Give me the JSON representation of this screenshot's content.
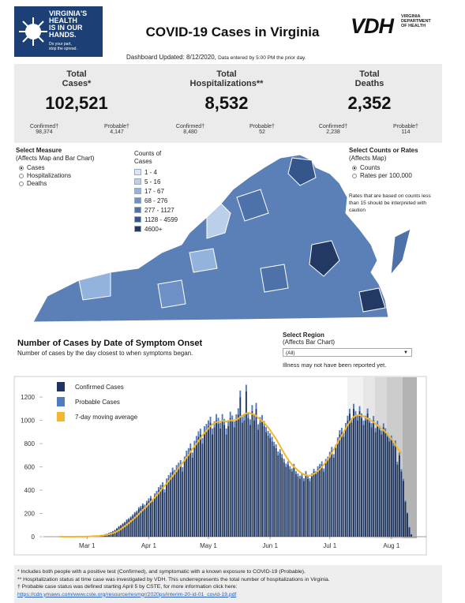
{
  "header": {
    "logo_lines": [
      "VIRGINIA'S",
      "HEALTH",
      "IS IN OUR",
      "HANDS."
    ],
    "logo_sub": [
      "Do your part,",
      "stop the spread."
    ],
    "title": "COVID-19 Cases in Virginia",
    "vdh": "VDH",
    "vdh_name": [
      "VIRGINIA",
      "DEPARTMENT",
      "OF HEALTH"
    ],
    "updated": "Dashboard Updated: 8/12/2020,",
    "updated_note": "Data entered by 5:00 PM the prior day."
  },
  "totals": [
    {
      "label": [
        "Total",
        "Cases*"
      ],
      "value": "102,521",
      "left_label": "Confirmed†",
      "left_value": "98,374",
      "right_label": "Probable†",
      "right_value": "4,147"
    },
    {
      "label": [
        "Total",
        "Hospitalizations**"
      ],
      "value": "8,532",
      "left_label": "Confirmed†",
      "left_value": "8,480",
      "right_label": "Probable†",
      "right_value": "52"
    },
    {
      "label": [
        "Total",
        "Deaths"
      ],
      "value": "2,352",
      "left_label": "Confirmed†",
      "left_value": "2,238",
      "right_label": "Probable†",
      "right_value": "114"
    }
  ],
  "map": {
    "measure_title": [
      "Select Measure",
      "(Affects Map and Bar Chart)"
    ],
    "measure_options": [
      "Cases",
      "Hospitalizations",
      "Deaths"
    ],
    "legend_title": [
      "Counts of",
      "Cases"
    ],
    "legend": [
      {
        "label": "1 - 4",
        "color": "#dde7f4"
      },
      {
        "label": "5 - 16",
        "color": "#bcd0ea"
      },
      {
        "label": "17 - 67",
        "color": "#93b2dc"
      },
      {
        "label": "68 - 276",
        "color": "#6d90c6"
      },
      {
        "label": "277 - 1127",
        "color": "#4d71a9"
      },
      {
        "label": "1128 - 4599",
        "color": "#34568b"
      },
      {
        "label": "4600+",
        "color": "#223a63"
      }
    ],
    "rates_title": [
      "Select Counts or Rates",
      "(Affects Map)"
    ],
    "rates_options": [
      "Counts",
      "Rates per 100,000"
    ],
    "rates_note": [
      "Rates that are based on counts less",
      "than 15 should be interpreted with",
      "caution"
    ]
  },
  "region": {
    "title": [
      "Select Region",
      "(Affects Bar Chart)"
    ],
    "selected": "(All)",
    "note": "Illness may not have been reported yet."
  },
  "chart_data": {
    "type": "bar",
    "title": "Number of Cases by Date of Symptom Onset",
    "subtitle": "Number of cases by the day closest to when symptoms began.",
    "categories": [
      null,
      null,
      null,
      null,
      null,
      null,
      null,
      null,
      null,
      null,
      null,
      null,
      null,
      null,
      "Mar 1",
      null,
      null,
      null,
      null,
      null,
      null,
      null,
      null,
      null,
      null,
      null,
      null,
      null,
      null,
      null,
      null,
      null,
      null,
      null,
      null,
      null,
      null,
      null,
      null,
      null,
      null,
      null,
      null,
      null,
      null,
      "Apr 1",
      null,
      null,
      null,
      null,
      null,
      null,
      null,
      null,
      null,
      null,
      null,
      null,
      null,
      null,
      null,
      null,
      null,
      null,
      null,
      null,
      null,
      null,
      null,
      null,
      null,
      null,
      null,
      null,
      null,
      "May 1",
      null,
      null,
      null,
      null,
      null,
      null,
      null,
      null,
      null,
      null,
      null,
      null,
      null,
      null,
      null,
      null,
      null,
      null,
      null,
      null,
      null,
      null,
      null,
      null,
      null,
      null,
      null,
      null,
      null,
      null,
      "Jun 1",
      null,
      null,
      null,
      null,
      null,
      null,
      null,
      null,
      null,
      null,
      null,
      null,
      null,
      null,
      null,
      null,
      null,
      null,
      null,
      null,
      null,
      null,
      null,
      null,
      null,
      null,
      null,
      null,
      null,
      "Jul 1",
      null,
      null,
      null,
      null,
      null,
      null,
      null,
      null,
      null,
      null,
      null,
      null,
      null,
      null,
      null,
      null,
      null,
      null,
      null,
      null,
      null,
      null,
      null,
      null,
      null,
      null,
      null,
      null,
      null,
      null,
      "Aug 1",
      null,
      null,
      null,
      null,
      null,
      null,
      null,
      null,
      null,
      null
    ],
    "series": [
      {
        "name": "Confirmed Cases",
        "color": "#1e3560",
        "values": [
          0,
          0,
          0,
          0,
          1,
          0,
          0,
          1,
          0,
          1,
          1,
          2,
          1,
          2,
          3,
          2,
          4,
          5,
          6,
          8,
          10,
          12,
          15,
          20,
          25,
          30,
          38,
          45,
          55,
          70,
          85,
          95,
          110,
          120,
          140,
          150,
          165,
          180,
          200,
          210,
          240,
          250,
          270,
          260,
          290,
          310,
          330,
          300,
          350,
          370,
          400,
          420,
          440,
          380,
          470,
          500,
          520,
          560,
          540,
          580,
          600,
          620,
          560,
          650,
          700,
          720,
          760,
          680,
          780,
          820,
          860,
          880,
          800,
          900,
          920,
          950,
          980,
          880,
          940,
          1000,
          970,
          930,
          1000,
          960,
          880,
          950,
          1020,
          990,
          940,
          1000,
          1050,
          1200,
          980,
          1000,
          1250,
          1020,
          960,
          1080,
          1000,
          1100,
          920,
          980,
          1000,
          950,
          900,
          870,
          850,
          820,
          780,
          760,
          700,
          720,
          680,
          640,
          600,
          620,
          580,
          560,
          600,
          540,
          520,
          500,
          520,
          480,
          540,
          500,
          480,
          520,
          560,
          540,
          580,
          600,
          620,
          560,
          640,
          660,
          700,
          740,
          680,
          760,
          820,
          880,
          900,
          860,
          940,
          1000,
          1060,
          980,
          1100,
          1040,
          1000,
          1080,
          1020,
          960,
          1000,
          1060,
          980,
          940,
          1000,
          900,
          960,
          920,
          880,
          940,
          900,
          860,
          820,
          840,
          780,
          800,
          620,
          700,
          560,
          480,
          300,
          200,
          80,
          20
        ]
      },
      {
        "name": "Probable Cases",
        "color": "#4f7cbf",
        "values": [
          0,
          0,
          0,
          0,
          0,
          0,
          0,
          0,
          0,
          0,
          0,
          0,
          0,
          0,
          0,
          0,
          0,
          0,
          0,
          0,
          1,
          1,
          1,
          2,
          2,
          3,
          3,
          4,
          5,
          5,
          6,
          6,
          7,
          8,
          9,
          10,
          10,
          12,
          12,
          14,
          14,
          15,
          16,
          16,
          18,
          20,
          20,
          22,
          22,
          24,
          26,
          26,
          28,
          28,
          30,
          30,
          32,
          34,
          34,
          36,
          36,
          38,
          38,
          40,
          40,
          42,
          42,
          44,
          44,
          46,
          46,
          48,
          48,
          50,
          50,
          50,
          52,
          50,
          52,
          54,
          52,
          50,
          54,
          52,
          50,
          52,
          54,
          52,
          50,
          52,
          54,
          56,
          50,
          52,
          56,
          50,
          48,
          52,
          50,
          50,
          46,
          48,
          46,
          44,
          42,
          40,
          40,
          38,
          36,
          34,
          32,
          32,
          30,
          30,
          28,
          28,
          26,
          26,
          26,
          24,
          24,
          24,
          24,
          22,
          24,
          24,
          22,
          24,
          24,
          24,
          26,
          26,
          28,
          26,
          28,
          28,
          30,
          32,
          30,
          32,
          34,
          36,
          36,
          34,
          38,
          40,
          40,
          38,
          42,
          40,
          40,
          42,
          40,
          38,
          40,
          42,
          38,
          36,
          38,
          34,
          36,
          34,
          32,
          34,
          32,
          30,
          30,
          30,
          28,
          28,
          24,
          24,
          20,
          18,
          12,
          8,
          4,
          2
        ]
      },
      {
        "name": "7-day moving average",
        "color": "#f2b630",
        "type": "line",
        "values": [
          0,
          0,
          0,
          0,
          0,
          0,
          0,
          0,
          0,
          1,
          1,
          1,
          1,
          1,
          2,
          2,
          3,
          4,
          5,
          6,
          7,
          9,
          11,
          14,
          17,
          20,
          25,
          30,
          37,
          45,
          55,
          65,
          78,
          90,
          103,
          117,
          132,
          147,
          162,
          178,
          195,
          213,
          230,
          245,
          262,
          280,
          300,
          318,
          336,
          356,
          376,
          398,
          420,
          438,
          456,
          478,
          500,
          522,
          544,
          566,
          590,
          612,
          634,
          656,
          680,
          704,
          730,
          754,
          776,
          800,
          822,
          846,
          870,
          890,
          910,
          930,
          950,
          965,
          975,
          985,
          990,
          990,
          995,
          995,
          990,
          995,
          1000,
          1000,
          1000,
          1005,
          1015,
          1030,
          1040,
          1050,
          1060,
          1065,
          1060,
          1055,
          1050,
          1040,
          1020,
          1010,
          995,
          980,
          960,
          940,
          915,
          890,
          865,
          840,
          810,
          780,
          750,
          720,
          690,
          665,
          640,
          620,
          600,
          585,
          570,
          555,
          545,
          535,
          530,
          525,
          525,
          530,
          540,
          550,
          565,
          580,
          600,
          620,
          640,
          665,
          690,
          720,
          750,
          780,
          810,
          840,
          870,
          900,
          930,
          960,
          985,
          1010,
          1030,
          1040,
          1045,
          1045,
          1040,
          1035,
          1025,
          1015,
          1005,
          995,
          985,
          970,
          955,
          945,
          930,
          915,
          900,
          880,
          860,
          840,
          820,
          790,
          760,
          740,
          720,
          null,
          null,
          null,
          null,
          null
        ]
      }
    ],
    "ylim": [
      0,
      1350
    ],
    "yticks": [
      0,
      200,
      400,
      600,
      800,
      1000,
      1200
    ],
    "grid": false
  },
  "footer": [
    "* Includes both people with a positive test (Confirmed), and symptomatic with a known exposure to COVID-19 (Probable).",
    "** Hospitalization status at time case was investigated by VDH. This underrepresents the total number of hospitalizations in Virginia.",
    "† Probable case status was defined starting April 5 by CSTE, for more information click here:",
    "https://cdn.ymaws.com/www.cste.org/resource/resmgr/2020ps/interim-20-id-01_covid-19.pdf"
  ]
}
